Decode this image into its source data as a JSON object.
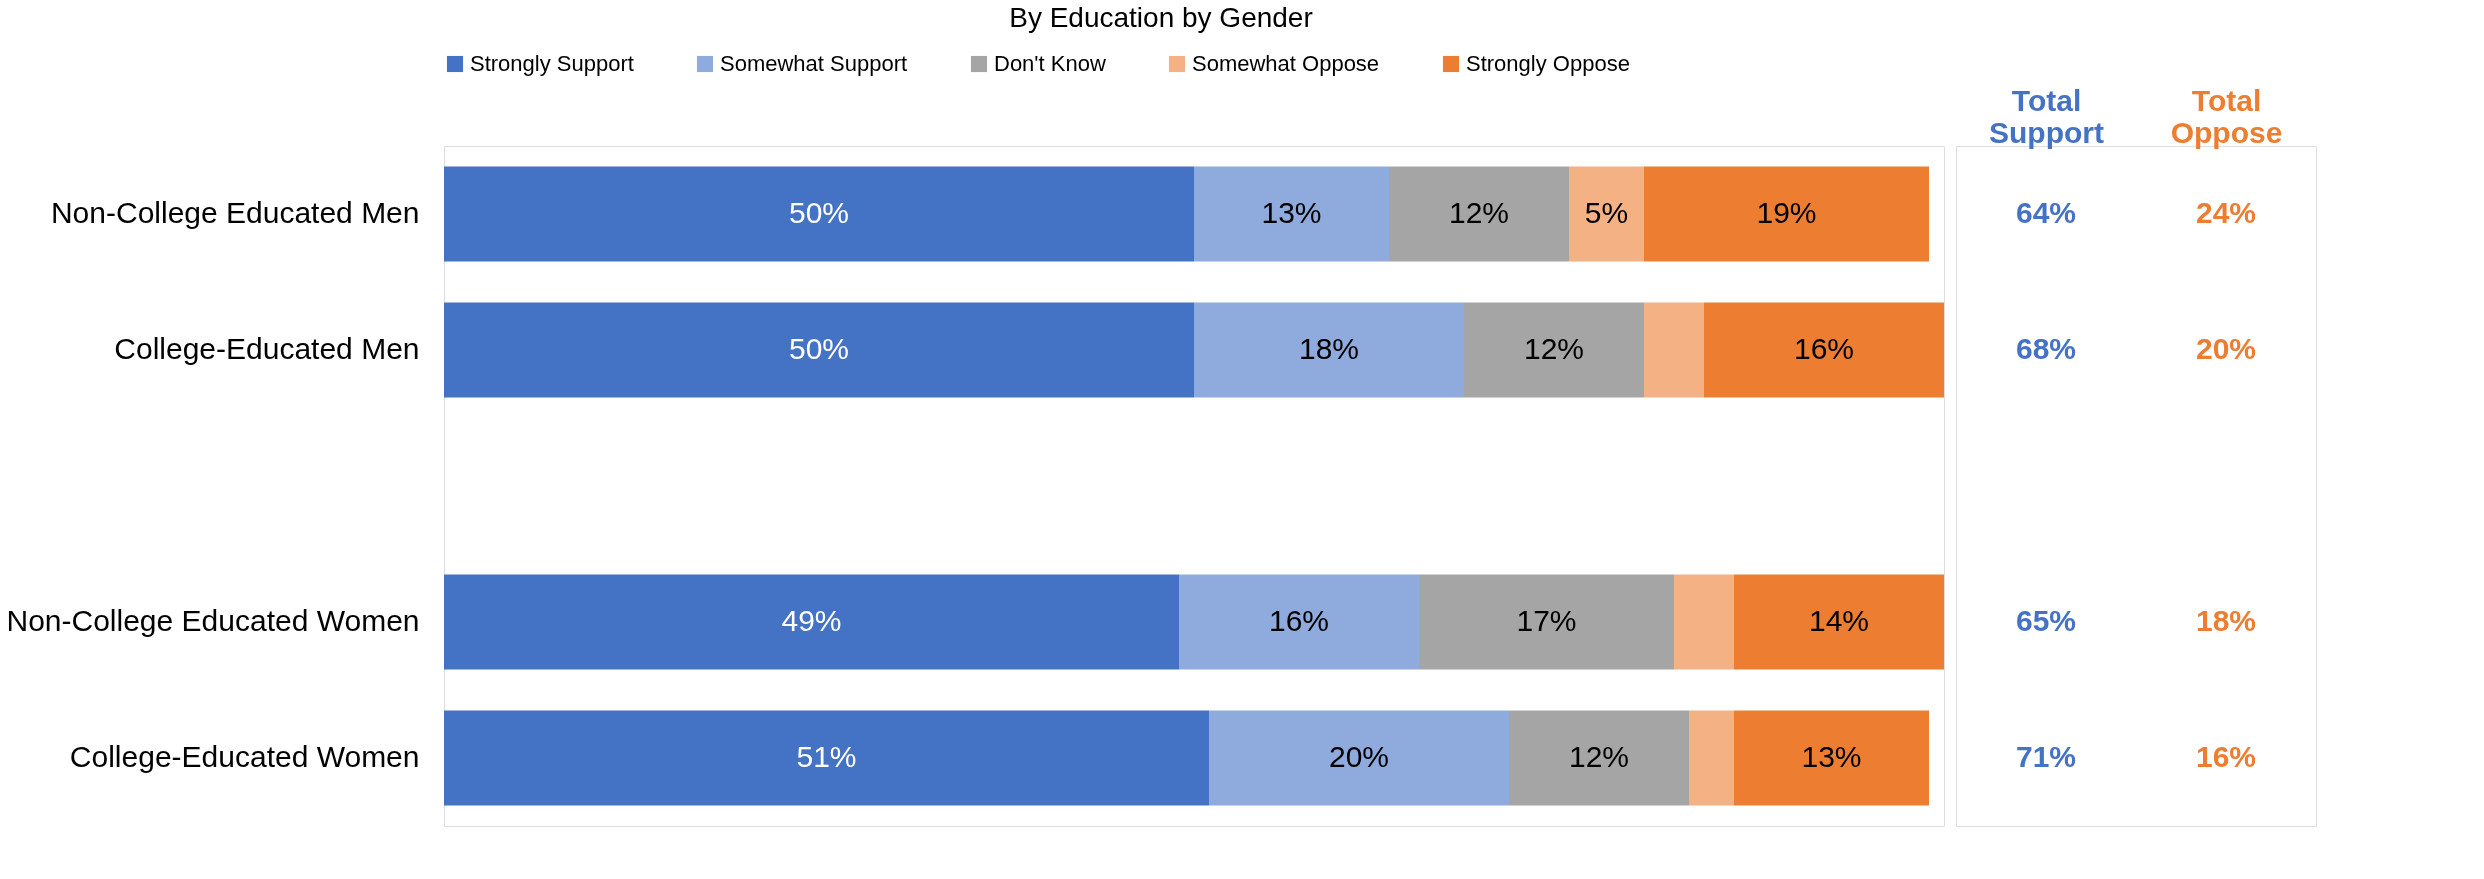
{
  "chart_data": {
    "type": "bar",
    "orientation": "horizontal",
    "stacked": true,
    "title": "By Education by Gender",
    "legend": "top",
    "categories": [
      "Non-College Educated Men",
      "College-Educated Men",
      null,
      "Non-College Educated Women",
      "College-Educated Women"
    ],
    "series": [
      {
        "name": "Strongly Support",
        "color": "#4472c4",
        "values": [
          50,
          50,
          null,
          49,
          51
        ],
        "value_labels": [
          "50%",
          "50%",
          null,
          "49%",
          "51%"
        ]
      },
      {
        "name": "Somewhat Support",
        "color": "#8faadc",
        "values": [
          13,
          18,
          null,
          16,
          20
        ],
        "value_labels": [
          "13%",
          "18%",
          null,
          "16%",
          "20%"
        ]
      },
      {
        "name": "Don't Know",
        "color": "#a5a5a5",
        "values": [
          12,
          12,
          null,
          17,
          12
        ],
        "value_labels": [
          "12%",
          "12%",
          null,
          "17%",
          "12%"
        ]
      },
      {
        "name": "Somewhat Oppose",
        "color": "#f4b183",
        "values": [
          5,
          4,
          null,
          4,
          3
        ],
        "value_labels": [
          "5%",
          null,
          null,
          null,
          null
        ]
      },
      {
        "name": "Strongly Oppose",
        "color": "#ed7d31",
        "values": [
          19,
          16,
          null,
          14,
          13
        ],
        "value_labels": [
          "19%",
          "16%",
          null,
          "14%",
          "13%"
        ]
      }
    ],
    "annotations": [
      "Total Support",
      "Total Oppose",
      "64%",
      "24%",
      "68%",
      "20%",
      "65%",
      "18%",
      "71%",
      "16%"
    ]
  }
}
